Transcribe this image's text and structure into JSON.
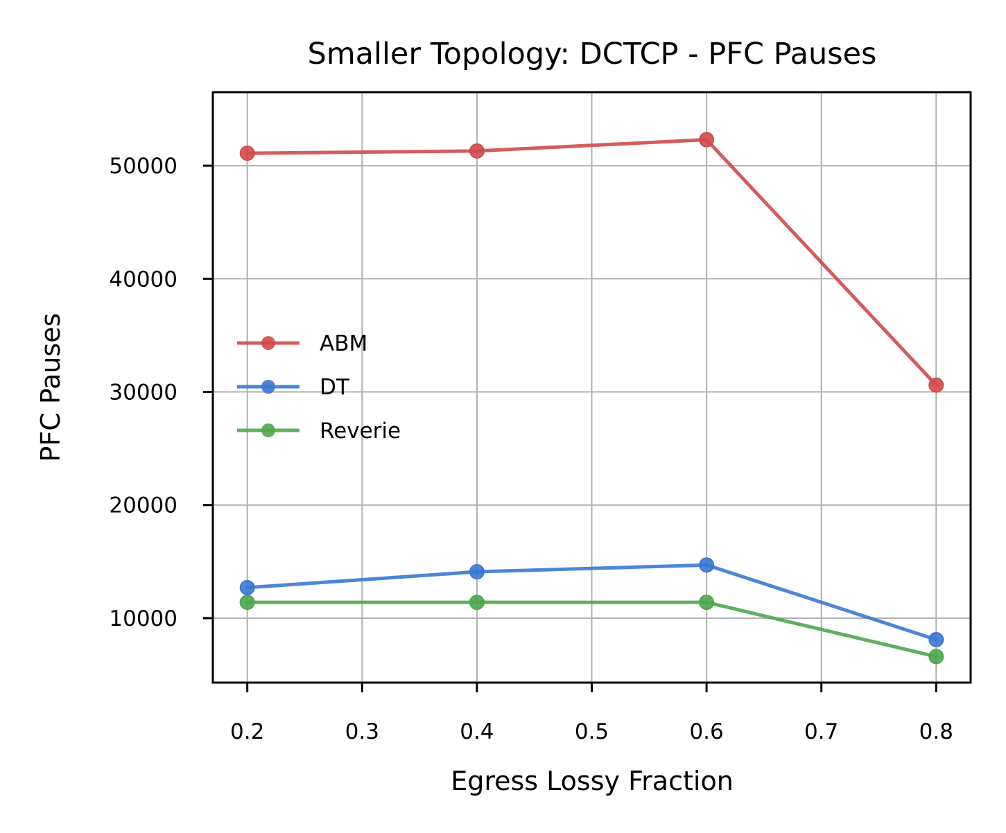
{
  "chart_data": {
    "type": "line",
    "title": "Smaller Topology: DCTCP - PFC Pauses",
    "xlabel": "Egress Lossy Fraction",
    "ylabel": "PFC Pauses",
    "x": [
      0.2,
      0.4,
      0.6,
      0.8
    ],
    "xlim": [
      0.17,
      0.83
    ],
    "ylim": [
      4300,
      56500
    ],
    "xticks": [
      0.2,
      0.3,
      0.4,
      0.5,
      0.6,
      0.7,
      0.8
    ],
    "xtick_labels": [
      "0.2",
      "0.3",
      "0.4",
      "0.5",
      "0.6",
      "0.7",
      "0.8"
    ],
    "yticks": [
      10000,
      20000,
      30000,
      40000,
      50000
    ],
    "ytick_labels": [
      "10000",
      "20000",
      "30000",
      "40000",
      "50000"
    ],
    "grid": true,
    "legend_position": "center-left",
    "series": [
      {
        "name": "ABM",
        "color": "#d04a4a",
        "values": [
          51100,
          51300,
          52300,
          30600
        ]
      },
      {
        "name": "DT",
        "color": "#3a78d4",
        "values": [
          12700,
          14100,
          14700,
          8100
        ]
      },
      {
        "name": "Reverie",
        "color": "#4ca64c",
        "values": [
          11400,
          11400,
          11400,
          6600
        ]
      }
    ]
  }
}
